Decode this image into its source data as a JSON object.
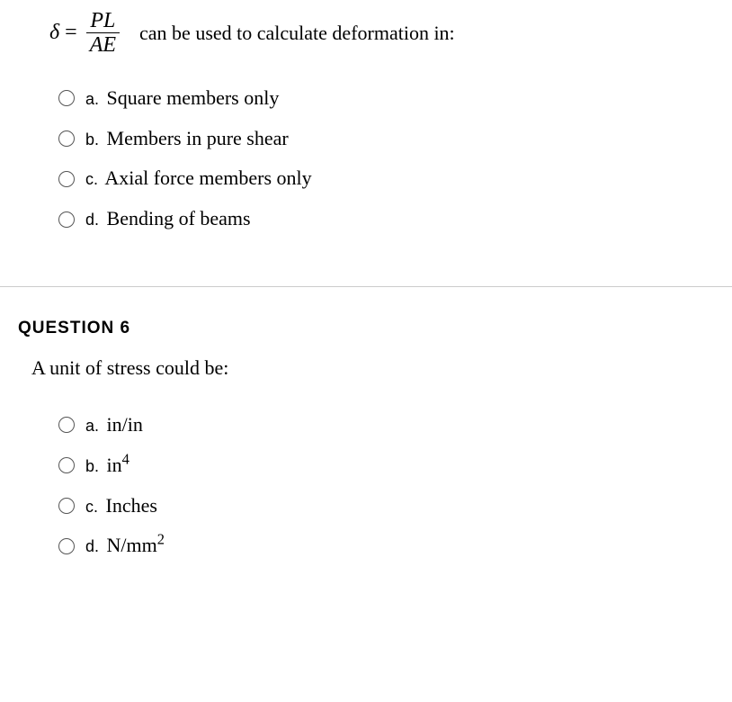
{
  "q5": {
    "formula": {
      "lhs": "δ",
      "num": "PL",
      "den": "AE"
    },
    "trailing_text": "can be used to calculate deformation in:",
    "options": [
      {
        "label": "a.",
        "text": "Square members only"
      },
      {
        "label": "b.",
        "text": "Members in pure shear"
      },
      {
        "label": "c.",
        "text": "Axial force members only"
      },
      {
        "label": "d.",
        "text": "Bending of beams"
      }
    ]
  },
  "q6": {
    "heading": "QUESTION 6",
    "text": "A unit of stress could be:",
    "options": [
      {
        "label": "a.",
        "text": "in/in"
      },
      {
        "label": "b.",
        "html": "in<sup>4</sup>"
      },
      {
        "label": "c.",
        "text": "Inches"
      },
      {
        "label": "d.",
        "html": "N/mm<sup>2</sup>"
      }
    ]
  }
}
